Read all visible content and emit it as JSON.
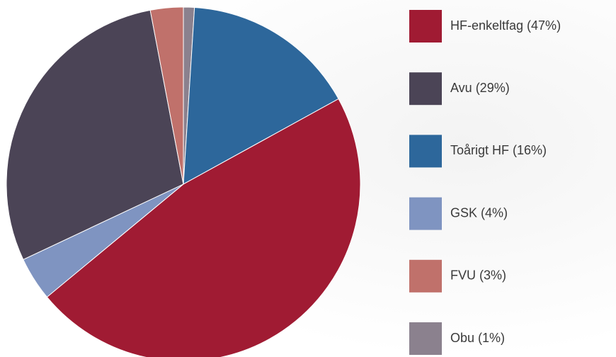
{
  "chart_data": {
    "type": "pie",
    "categories": [
      "HF-enkeltfag (47%)",
      "Avu (29%)",
      "Toårigt HF (16%)",
      "GSK (4%)",
      "FVU (3%)",
      "Obu (1%)"
    ],
    "values": [
      47,
      29,
      16,
      4,
      3,
      1
    ],
    "colors": [
      "#a01b33",
      "#4b4456",
      "#2d679b",
      "#7f94c1",
      "#c0716b",
      "#8b818e"
    ]
  }
}
